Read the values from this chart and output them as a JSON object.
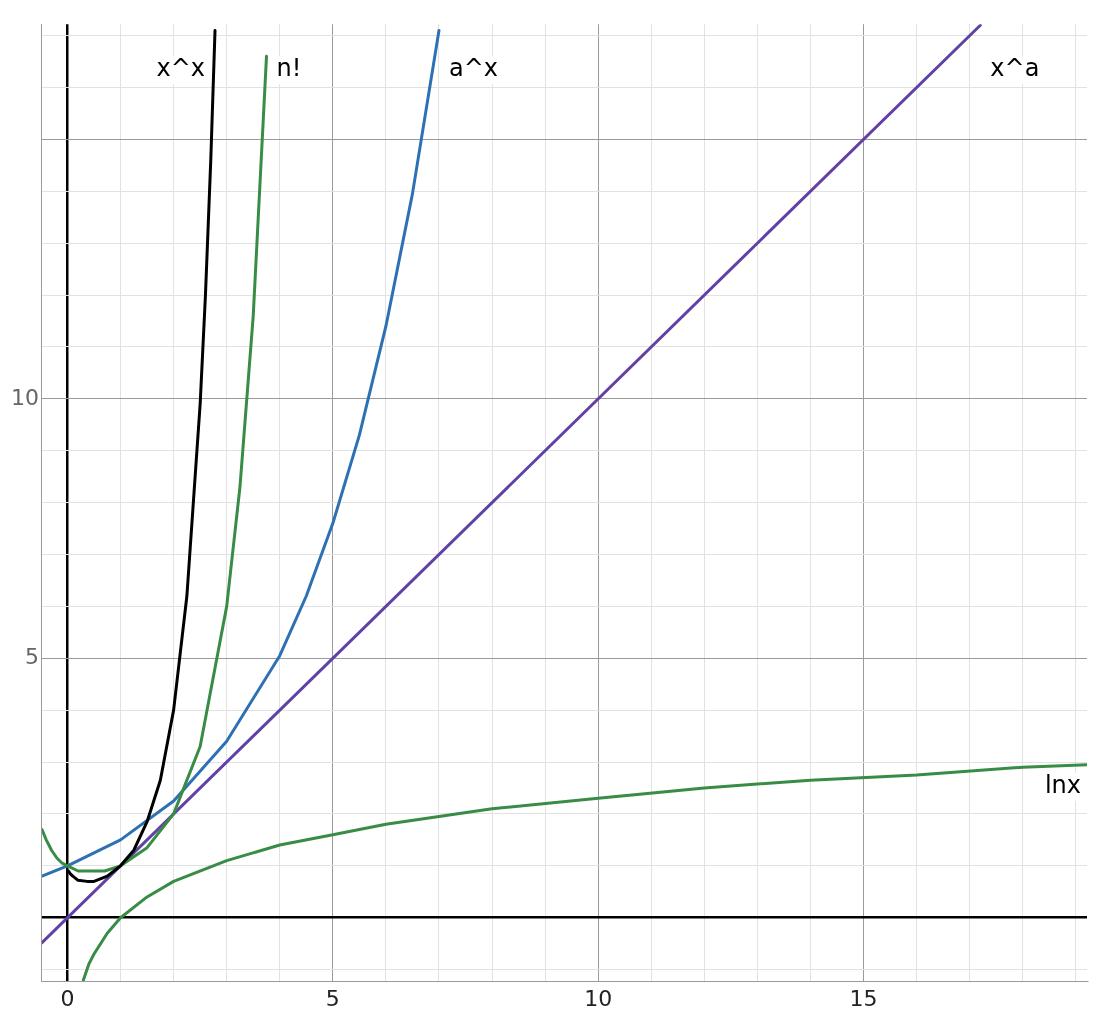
{
  "chart_data": {
    "type": "line",
    "xlim": [
      -0.48,
      19.21
    ],
    "ylim": [
      -1.22,
      17.22
    ],
    "xticks": [
      0,
      {
        "value": 1,
        "label": null
      },
      {
        "value": 2,
        "label": null
      },
      {
        "value": 3,
        "label": null
      },
      {
        "value": 4,
        "label": null
      },
      5,
      {
        "value": 6,
        "label": null
      },
      {
        "value": 7,
        "label": null
      },
      {
        "value": 8,
        "label": null
      },
      {
        "value": 9,
        "label": null
      },
      10,
      {
        "value": 11,
        "label": null
      },
      {
        "value": 12,
        "label": null
      },
      {
        "value": 13,
        "label": null
      },
      {
        "value": 14,
        "label": null
      },
      15,
      {
        "value": 16,
        "label": null
      },
      {
        "value": 17,
        "label": null
      },
      {
        "value": 18,
        "label": null
      },
      {
        "value": 19,
        "label": null
      }
    ],
    "yticks": [
      {
        "value": -1,
        "label": null
      },
      {
        "value": 0,
        "label": null
      },
      {
        "value": 1,
        "label": null
      },
      {
        "value": 2,
        "label": null
      },
      {
        "value": 3,
        "label": null
      },
      {
        "value": 4,
        "label": null
      },
      5,
      {
        "value": 6,
        "label": null
      },
      {
        "value": 7,
        "label": null
      },
      {
        "value": 8,
        "label": null
      },
      {
        "value": 9,
        "label": null
      },
      10,
      {
        "value": 11,
        "label": null
      },
      {
        "value": 12,
        "label": null
      },
      {
        "value": 13,
        "label": null
      },
      {
        "value": 14,
        "label": null
      },
      {
        "value": 15,
        "label": null
      },
      {
        "value": 16,
        "label": null
      },
      {
        "value": 17,
        "label": null
      }
    ],
    "grid": true,
    "legend": false,
    "marker": "none",
    "line_style": "solid",
    "series": [
      {
        "name": "x^x",
        "color": "#000000",
        "x": [
          0.02,
          0.05,
          0.1,
          0.2,
          0.37,
          0.5,
          0.75,
          1,
          1.25,
          1.5,
          1.75,
          2,
          2.25,
          2.5,
          2.6,
          2.7,
          2.78
        ],
        "values": [
          0.9,
          0.85,
          0.8,
          0.72,
          0.7,
          0.7,
          0.8,
          1,
          1.3,
          1.85,
          2.65,
          4,
          6.2,
          9.9,
          12,
          14.6,
          17.1
        ]
      },
      {
        "name": "n!",
        "color": "#388c46",
        "x": [
          -0.48,
          -0.4,
          -0.3,
          -0.2,
          -0.1,
          0,
          0.2,
          0.46,
          0.7,
          1,
          1.5,
          2,
          2.5,
          3,
          3.25,
          3.5,
          3.75
        ],
        "values": [
          1.7,
          1.5,
          1.3,
          1.15,
          1.05,
          1,
          0.9,
          0.9,
          0.9,
          1,
          1.35,
          2,
          3.3,
          6,
          8.3,
          11.6,
          16.6
        ]
      },
      {
        "name": "a^x",
        "color": "#2d70b3",
        "x": [
          -0.48,
          0,
          1,
          2,
          3,
          4,
          4.5,
          5,
          5.5,
          6,
          6.5,
          7
        ],
        "values": [
          0.8,
          1,
          1.5,
          2.25,
          3.4,
          5.05,
          6.2,
          7.6,
          9.3,
          11.4,
          13.95,
          17.1
        ]
      },
      {
        "name": "x^a",
        "color": "#6042a6",
        "x": [
          -0.48,
          17.2
        ],
        "values": [
          -0.48,
          17.2
        ]
      },
      {
        "name": "lnx",
        "color": "#388c46",
        "x": [
          0.3,
          0.4,
          0.5,
          0.75,
          1,
          1.5,
          2,
          3,
          4,
          5,
          6,
          8,
          10,
          12,
          14,
          16,
          18,
          19.21
        ],
        "values": [
          -1.2,
          -0.9,
          -0.7,
          -0.3,
          0,
          0.4,
          0.7,
          1.1,
          1.4,
          1.6,
          1.8,
          2.1,
          2.3,
          2.5,
          2.65,
          2.75,
          2.9,
          2.95
        ]
      }
    ]
  }
}
